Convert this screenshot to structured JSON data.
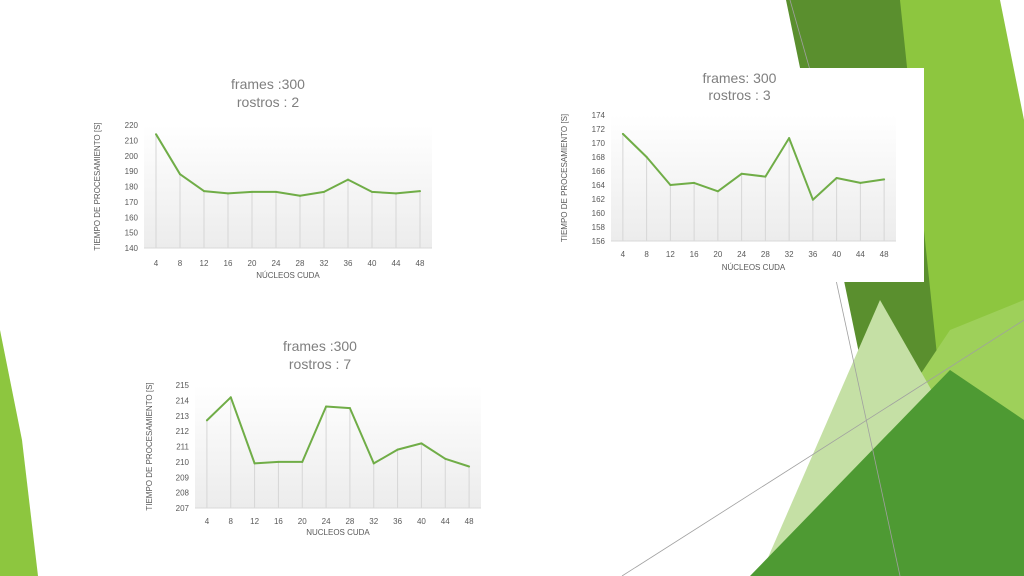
{
  "theme": {
    "accent": "#70ad47",
    "green_light": "#c5e0a5",
    "green_mid": "#8dc63f",
    "green_dark": "#5a8f2e"
  },
  "chart_data": [
    {
      "type": "line",
      "title": "frames :300",
      "subtitle": "rostros : 2",
      "xlabel": "NÚCLEOS CUDA",
      "ylabel": "TIEMPO DE PROCESAMIENTO [S]",
      "x": [
        "4",
        "8",
        "12",
        "16",
        "20",
        "24",
        "28",
        "32",
        "36",
        "40",
        "44",
        "48"
      ],
      "ylim": [
        140,
        220
      ],
      "yticks": [
        140,
        150,
        160,
        170,
        180,
        190,
        200,
        210,
        220
      ],
      "values": [
        214,
        188,
        177,
        175.5,
        176.5,
        176.5,
        174,
        176.5,
        184.5,
        176.5,
        175.5,
        177
      ],
      "grid": false,
      "color": "#70ad47"
    },
    {
      "type": "line",
      "title": "frames: 300",
      "subtitle": "rostros : 3",
      "xlabel": "NÚCLEOS CUDA",
      "ylabel": "TIEMPO DE PROCESAMIENTO [S]",
      "x": [
        "4",
        "8",
        "12",
        "16",
        "20",
        "24",
        "28",
        "32",
        "36",
        "40",
        "44",
        "48"
      ],
      "ylim": [
        156,
        174
      ],
      "yticks": [
        156,
        158,
        160,
        162,
        164,
        166,
        168,
        170,
        172,
        174
      ],
      "values": [
        171.3,
        168,
        164,
        164.3,
        163.1,
        165.6,
        165.2,
        170.7,
        161.9,
        165,
        164.3,
        164.8
      ],
      "grid": false,
      "color": "#70ad47"
    },
    {
      "type": "line",
      "title": "frames :300",
      "subtitle": "rostros : 7",
      "xlabel": "NUCLEOS CUDA",
      "ylabel": "TIEMPO DE PROCESAMIENTO [S]",
      "x": [
        "4",
        "8",
        "12",
        "16",
        "20",
        "24",
        "28",
        "32",
        "36",
        "40",
        "44",
        "48"
      ],
      "ylim": [
        207,
        215
      ],
      "yticks": [
        207,
        208,
        209,
        210,
        211,
        212,
        213,
        214,
        215
      ],
      "values": [
        212.7,
        214.2,
        209.9,
        210,
        210,
        213.6,
        213.5,
        209.9,
        210.8,
        211.2,
        210.2,
        209.7
      ],
      "grid": false,
      "color": "#70ad47"
    }
  ]
}
